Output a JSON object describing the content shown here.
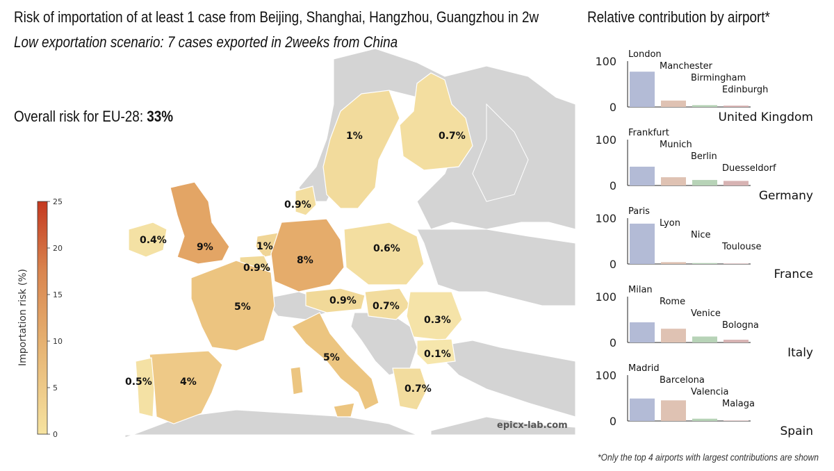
{
  "header": {
    "title": "Risk of importation of at least 1 case from Beijing, Shanghai, Hangzhou, Guangzhou in 2w",
    "subtitle": "Low exportation scenario: 7 cases exported in 2weeks from China",
    "overall_label": "Overall risk for EU-28:",
    "overall_value": "33%"
  },
  "sidebar": {
    "title": "Relative contribution by airport*",
    "footnote": "*Only the top 4 airports with largest contributions are shown"
  },
  "watermark": "epicx-lab.com",
  "colors": {
    "land_other": "#d4d4d4",
    "sea": "#ffffff",
    "bar_1": "#b3bbd6",
    "bar_2": "#dfc2b3",
    "bar_3": "#b7d3b7",
    "bar_4": "#d7b3b3",
    "scale_low": "#f6e3a0",
    "scale_high": "#c4381f"
  },
  "chart_data": [
    {
      "type": "heatmap",
      "title": "Risk of importation of at least 1 case from Beijing, Shanghai, Hangzhou, Guangzhou in 2w",
      "subtitle": "Low exportation scenario: 7 cases exported in 2weeks from China",
      "colorbar": {
        "label": "Importation risk (%)",
        "range": [
          0,
          25
        ],
        "ticks": [
          "0",
          "5",
          "10",
          "15",
          "20",
          "25"
        ]
      },
      "regions": [
        {
          "name": "United Kingdom",
          "label": "9%",
          "value": 9
        },
        {
          "name": "Germany",
          "label": "8%",
          "value": 8
        },
        {
          "name": "France",
          "label": "5%",
          "value": 5
        },
        {
          "name": "Italy",
          "label": "5%",
          "value": 5
        },
        {
          "name": "Spain",
          "label": "4%",
          "value": 4
        },
        {
          "name": "Sweden",
          "label": "1%",
          "value": 1
        },
        {
          "name": "Netherlands",
          "label": "1%",
          "value": 1
        },
        {
          "name": "Finland",
          "label": "0.7%",
          "value": 0.7
        },
        {
          "name": "Denmark",
          "label": "0.9%",
          "value": 0.9
        },
        {
          "name": "Ireland",
          "label": "0.4%",
          "value": 0.4
        },
        {
          "name": "Belgium",
          "label": "0.9%",
          "value": 0.9
        },
        {
          "name": "Poland",
          "label": "0.6%",
          "value": 0.6
        },
        {
          "name": "Austria",
          "label": "0.9%",
          "value": 0.9
        },
        {
          "name": "Hungary",
          "label": "0.7%",
          "value": 0.7
        },
        {
          "name": "Romania",
          "label": "0.3%",
          "value": 0.3
        },
        {
          "name": "Bulgaria",
          "label": "0.1%",
          "value": 0.1
        },
        {
          "name": "Portugal",
          "label": "0.5%",
          "value": 0.5
        },
        {
          "name": "Greece",
          "label": "0.7%",
          "value": 0.7
        }
      ]
    },
    {
      "type": "bar",
      "title": "Relative contribution by airport*",
      "yticks": [
        "0",
        "100"
      ],
      "ylim": [
        0,
        100
      ],
      "panels": [
        {
          "country": "United Kingdom",
          "categories": [
            "London",
            "Manchester",
            "Birmingham",
            "Edinburgh"
          ],
          "values": [
            77,
            14,
            4,
            3
          ]
        },
        {
          "country": "Germany",
          "categories": [
            "Frankfurt",
            "Munich",
            "Berlin",
            "Duesseldorf"
          ],
          "values": [
            41,
            18,
            12,
            10
          ]
        },
        {
          "country": "France",
          "categories": [
            "Paris",
            "Lyon",
            "Nice",
            "Toulouse"
          ],
          "values": [
            88,
            4,
            2,
            1
          ]
        },
        {
          "country": "Italy",
          "categories": [
            "Milan",
            "Rome",
            "Venice",
            "Bologna"
          ],
          "values": [
            44,
            30,
            13,
            6
          ]
        },
        {
          "country": "Spain",
          "categories": [
            "Madrid",
            "Barcelona",
            "Valencia",
            "Malaga"
          ],
          "values": [
            49,
            45,
            5,
            1
          ]
        }
      ]
    }
  ]
}
